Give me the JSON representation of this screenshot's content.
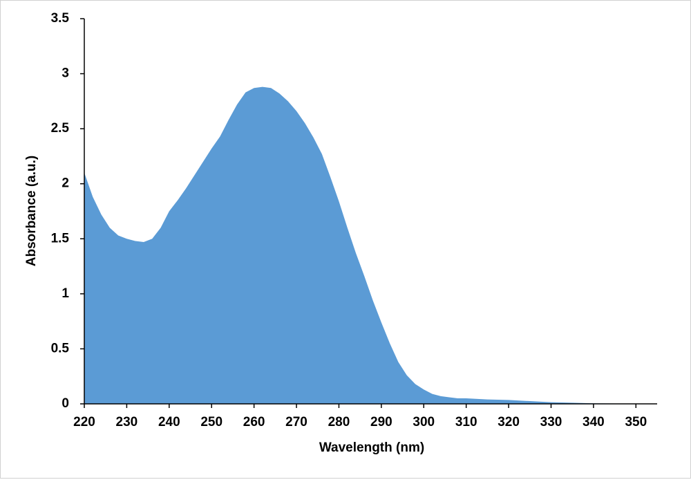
{
  "chart_data": {
    "type": "area",
    "x_label": "Wavelength (nm)",
    "y_label": "Absorbance (a.u.)",
    "color": "#5b9bd5",
    "xlim": [
      220,
      355
    ],
    "ylim": [
      0,
      3.5
    ],
    "xticks": [
      220,
      230,
      240,
      250,
      260,
      270,
      280,
      290,
      300,
      310,
      320,
      330,
      340,
      350
    ],
    "yticks": [
      0,
      0.5,
      1,
      1.5,
      2,
      2.5,
      3,
      3.5
    ],
    "x": [
      220,
      222,
      224,
      226,
      228,
      230,
      232,
      234,
      236,
      238,
      240,
      242,
      244,
      246,
      248,
      250,
      252,
      254,
      256,
      258,
      260,
      262,
      264,
      266,
      268,
      270,
      272,
      274,
      276,
      278,
      280,
      282,
      284,
      286,
      288,
      290,
      292,
      294,
      296,
      298,
      300,
      302,
      304,
      306,
      308,
      310,
      315,
      320,
      325,
      330,
      335,
      340,
      345,
      350,
      355
    ],
    "values": [
      2.1,
      1.88,
      1.72,
      1.6,
      1.53,
      1.5,
      1.48,
      1.47,
      1.5,
      1.6,
      1.75,
      1.85,
      1.96,
      2.08,
      2.2,
      2.32,
      2.43,
      2.58,
      2.72,
      2.83,
      2.87,
      2.88,
      2.87,
      2.82,
      2.75,
      2.66,
      2.55,
      2.42,
      2.27,
      2.06,
      1.84,
      1.6,
      1.37,
      1.16,
      0.94,
      0.74,
      0.55,
      0.38,
      0.26,
      0.18,
      0.13,
      0.09,
      0.07,
      0.06,
      0.05,
      0.05,
      0.04,
      0.035,
      0.025,
      0.015,
      0.01,
      0.005,
      0.003,
      0.002,
      0.001
    ]
  }
}
